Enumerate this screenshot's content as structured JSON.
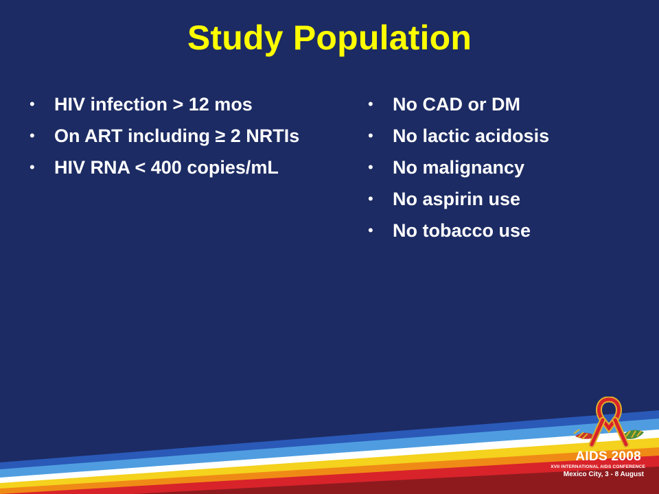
{
  "slide": {
    "title": "Study Population",
    "left_bullets": [
      "HIV infection > 12 mos",
      "On ART including ≥ 2 NRTIs",
      "HIV RNA < 400 copies/mL"
    ],
    "right_bullets": [
      "No CAD or DM",
      "No lactic acidosis",
      "No malignancy",
      "No aspirin use",
      "No tobacco use"
    ],
    "bullet_glyph": "•"
  },
  "logo": {
    "name": "AIDS 2008",
    "subtitle": "XVII INTERNATIONAL AIDS CONFERENCE",
    "place": "Mexico City, 3 - 8 August",
    "icon": "red-ribbon-icon"
  },
  "colors": {
    "background": "#1c2b63",
    "title": "#ffff00",
    "text": "#ffffff",
    "ribbon": "#d8232a"
  }
}
